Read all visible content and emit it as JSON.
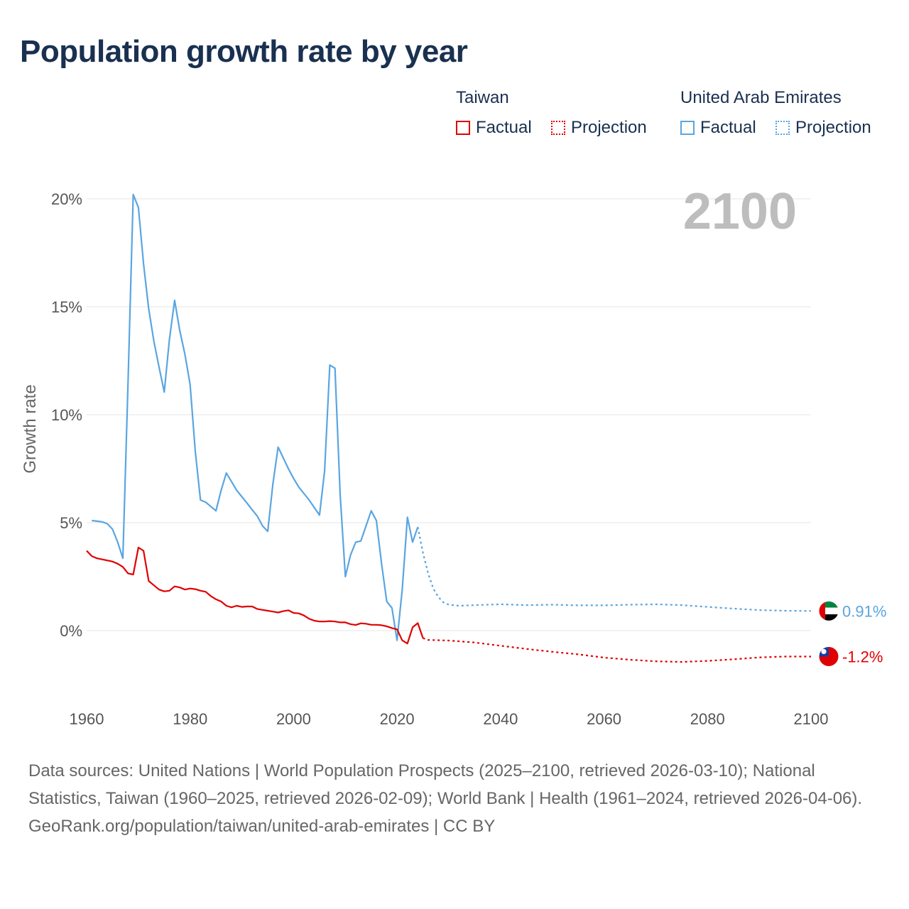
{
  "title": "Population growth rate by year",
  "legend": {
    "groups": [
      {
        "name": "Taiwan",
        "factual": "Factual",
        "projection": "Projection",
        "color": "#e00000"
      },
      {
        "name": "United Arab Emirates",
        "factual": "Factual",
        "projection": "Projection",
        "color": "#5aa5e0"
      }
    ]
  },
  "chart_data": {
    "type": "line",
    "title": "Population growth rate by year",
    "xlabel": "",
    "ylabel": "Growth rate",
    "xlim": [
      1960,
      2100
    ],
    "ylim": [
      -3,
      20
    ],
    "xticks": [
      1960,
      1980,
      2000,
      2020,
      2040,
      2060,
      2080,
      2100
    ],
    "xtick_labels": [
      "1960",
      "1980",
      "2000",
      "2020",
      "2040",
      "2060",
      "2080",
      "2100"
    ],
    "yticks": [
      0,
      5,
      10,
      15,
      20
    ],
    "ytick_labels": [
      "0%",
      "5%",
      "10%",
      "15%",
      "20%"
    ],
    "current_year": "2100",
    "grid": true,
    "series": [
      {
        "name": "United Arab Emirates",
        "color": "#5aa5e0",
        "end_label": "0.91%",
        "flag": "uae-flag",
        "factual": [
          [
            1961,
            5.1
          ],
          [
            1962,
            5.07
          ],
          [
            1963,
            5.04
          ],
          [
            1964,
            4.95
          ],
          [
            1965,
            4.7
          ],
          [
            1966,
            4.1
          ],
          [
            1967,
            3.35
          ],
          [
            1968,
            11.5
          ],
          [
            1969,
            20.2
          ],
          [
            1970,
            19.6
          ],
          [
            1971,
            17.0
          ],
          [
            1972,
            14.9
          ],
          [
            1973,
            13.4
          ],
          [
            1974,
            12.2
          ],
          [
            1975,
            11.05
          ],
          [
            1976,
            13.5
          ],
          [
            1977,
            15.3
          ],
          [
            1978,
            13.9
          ],
          [
            1979,
            12.8
          ],
          [
            1980,
            11.4
          ],
          [
            1981,
            8.3
          ],
          [
            1982,
            6.05
          ],
          [
            1983,
            5.95
          ],
          [
            1984,
            5.75
          ],
          [
            1985,
            5.55
          ],
          [
            1986,
            6.5
          ],
          [
            1987,
            7.3
          ],
          [
            1988,
            6.9
          ],
          [
            1989,
            6.5
          ],
          [
            1990,
            6.2
          ],
          [
            1991,
            5.9
          ],
          [
            1992,
            5.6
          ],
          [
            1993,
            5.3
          ],
          [
            1994,
            4.85
          ],
          [
            1995,
            4.6
          ],
          [
            1996,
            6.8
          ],
          [
            1997,
            8.5
          ],
          [
            1998,
            8.0
          ],
          [
            1999,
            7.5
          ],
          [
            2000,
            7.05
          ],
          [
            2001,
            6.65
          ],
          [
            2002,
            6.35
          ],
          [
            2003,
            6.05
          ],
          [
            2004,
            5.7
          ],
          [
            2005,
            5.35
          ],
          [
            2006,
            7.4
          ],
          [
            2007,
            12.3
          ],
          [
            2008,
            12.15
          ],
          [
            2009,
            6.3
          ],
          [
            2010,
            2.5
          ],
          [
            2011,
            3.5
          ],
          [
            2012,
            4.1
          ],
          [
            2013,
            4.15
          ],
          [
            2014,
            4.85
          ],
          [
            2015,
            5.55
          ],
          [
            2016,
            5.1
          ],
          [
            2017,
            3.1
          ],
          [
            2018,
            1.35
          ],
          [
            2019,
            1.05
          ],
          [
            2020,
            -0.45
          ],
          [
            2021,
            1.9
          ],
          [
            2022,
            5.25
          ],
          [
            2023,
            4.1
          ],
          [
            2024,
            4.8
          ]
        ],
        "projection": [
          [
            2024,
            4.8
          ],
          [
            2025,
            3.6
          ],
          [
            2026,
            2.65
          ],
          [
            2027,
            1.95
          ],
          [
            2028,
            1.55
          ],
          [
            2029,
            1.3
          ],
          [
            2030,
            1.2
          ],
          [
            2032,
            1.15
          ],
          [
            2035,
            1.18
          ],
          [
            2040,
            1.22
          ],
          [
            2045,
            1.18
          ],
          [
            2050,
            1.2
          ],
          [
            2055,
            1.17
          ],
          [
            2060,
            1.17
          ],
          [
            2065,
            1.2
          ],
          [
            2070,
            1.22
          ],
          [
            2075,
            1.18
          ],
          [
            2080,
            1.1
          ],
          [
            2085,
            1.02
          ],
          [
            2090,
            0.95
          ],
          [
            2095,
            0.92
          ],
          [
            2100,
            0.91
          ]
        ]
      },
      {
        "name": "Taiwan",
        "color": "#e00000",
        "end_label": "-1.2%",
        "flag": "taiwan-flag",
        "factual": [
          [
            1960,
            3.7
          ],
          [
            1961,
            3.45
          ],
          [
            1962,
            3.35
          ],
          [
            1963,
            3.3
          ],
          [
            1964,
            3.25
          ],
          [
            1965,
            3.2
          ],
          [
            1966,
            3.1
          ],
          [
            1967,
            2.95
          ],
          [
            1968,
            2.65
          ],
          [
            1969,
            2.6
          ],
          [
            1970,
            3.85
          ],
          [
            1971,
            3.7
          ],
          [
            1972,
            2.3
          ],
          [
            1973,
            2.1
          ],
          [
            1974,
            1.9
          ],
          [
            1975,
            1.82
          ],
          [
            1976,
            1.85
          ],
          [
            1977,
            2.05
          ],
          [
            1978,
            2.0
          ],
          [
            1979,
            1.9
          ],
          [
            1980,
            1.95
          ],
          [
            1981,
            1.92
          ],
          [
            1982,
            1.85
          ],
          [
            1983,
            1.8
          ],
          [
            1984,
            1.6
          ],
          [
            1985,
            1.45
          ],
          [
            1986,
            1.35
          ],
          [
            1987,
            1.15
          ],
          [
            1988,
            1.08
          ],
          [
            1989,
            1.15
          ],
          [
            1990,
            1.1
          ],
          [
            1991,
            1.12
          ],
          [
            1992,
            1.12
          ],
          [
            1993,
            1.0
          ],
          [
            1994,
            0.96
          ],
          [
            1995,
            0.92
          ],
          [
            1996,
            0.88
          ],
          [
            1997,
            0.84
          ],
          [
            1998,
            0.9
          ],
          [
            1999,
            0.94
          ],
          [
            2000,
            0.82
          ],
          [
            2001,
            0.8
          ],
          [
            2002,
            0.7
          ],
          [
            2003,
            0.55
          ],
          [
            2004,
            0.46
          ],
          [
            2005,
            0.42
          ],
          [
            2006,
            0.42
          ],
          [
            2007,
            0.44
          ],
          [
            2008,
            0.42
          ],
          [
            2009,
            0.38
          ],
          [
            2010,
            0.38
          ],
          [
            2011,
            0.3
          ],
          [
            2012,
            0.26
          ],
          [
            2013,
            0.34
          ],
          [
            2014,
            0.32
          ],
          [
            2015,
            0.27
          ],
          [
            2016,
            0.27
          ],
          [
            2017,
            0.25
          ],
          [
            2018,
            0.2
          ],
          [
            2019,
            0.12
          ],
          [
            2020,
            0.06
          ],
          [
            2021,
            -0.45
          ],
          [
            2022,
            -0.6
          ],
          [
            2023,
            0.15
          ],
          [
            2024,
            0.35
          ],
          [
            2025,
            -0.35
          ]
        ],
        "projection": [
          [
            2025,
            -0.35
          ],
          [
            2026,
            -0.43
          ],
          [
            2030,
            -0.46
          ],
          [
            2035,
            -0.55
          ],
          [
            2040,
            -0.7
          ],
          [
            2045,
            -0.85
          ],
          [
            2050,
            -0.98
          ],
          [
            2055,
            -1.1
          ],
          [
            2060,
            -1.25
          ],
          [
            2065,
            -1.35
          ],
          [
            2070,
            -1.42
          ],
          [
            2075,
            -1.45
          ],
          [
            2080,
            -1.4
          ],
          [
            2085,
            -1.33
          ],
          [
            2090,
            -1.24
          ],
          [
            2095,
            -1.2
          ],
          [
            2100,
            -1.2
          ]
        ]
      }
    ]
  },
  "footer": {
    "sources": "Data sources: United Nations | World Population Prospects (2025–2100, retrieved 2026-03-10); National Statistics, Taiwan (1960–2025, retrieved 2026-02-09); World Bank | Health (1961–2024, retrieved 2026-04-06).",
    "credit": "GeoRank.org/population/taiwan/united-arab-emirates | CC BY"
  }
}
